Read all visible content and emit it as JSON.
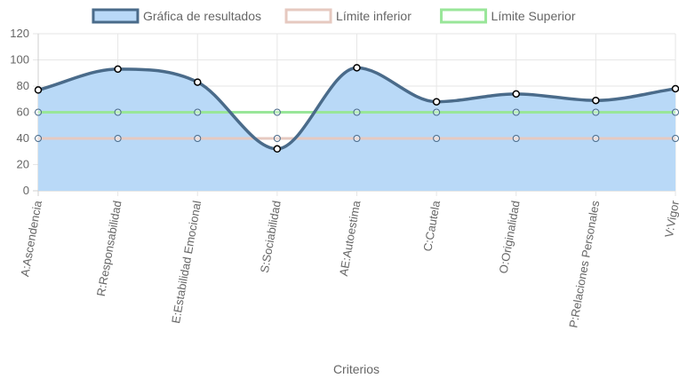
{
  "chart_data": {
    "type": "line",
    "title": "",
    "xlabel": "Criterios",
    "ylabel": "",
    "ylim": [
      0,
      120
    ],
    "yticks": [
      0,
      20,
      40,
      60,
      80,
      100,
      120
    ],
    "grid": true,
    "legend_position": "top-center",
    "categories": [
      "A:Ascendencia",
      "R:Responsabilidad",
      "E:Estabilidad Emocional",
      "S:Sociabilidad",
      "AE:Autoestima",
      "C:Cautela",
      "O:Originalidad",
      "P:Relaciones Personales",
      "V:Vigor"
    ],
    "series": [
      {
        "name": "Gráfica de resultados",
        "values": [
          77,
          93,
          83,
          32,
          94,
          68,
          74,
          69,
          78
        ],
        "color": "#4a6b8a",
        "fill": "#b9d9f7",
        "legend_fill": "#b9d9f7"
      },
      {
        "name": "Límite inferior",
        "values": [
          40,
          40,
          40,
          40,
          40,
          40,
          40,
          40,
          40
        ],
        "color": "#e6c9c0",
        "legend_fill": "#ffffff"
      },
      {
        "name": "Límite Superior",
        "values": [
          60,
          60,
          60,
          60,
          60,
          60,
          60,
          60,
          60
        ],
        "color": "#99e699",
        "legend_fill": "#ffffff"
      }
    ]
  }
}
